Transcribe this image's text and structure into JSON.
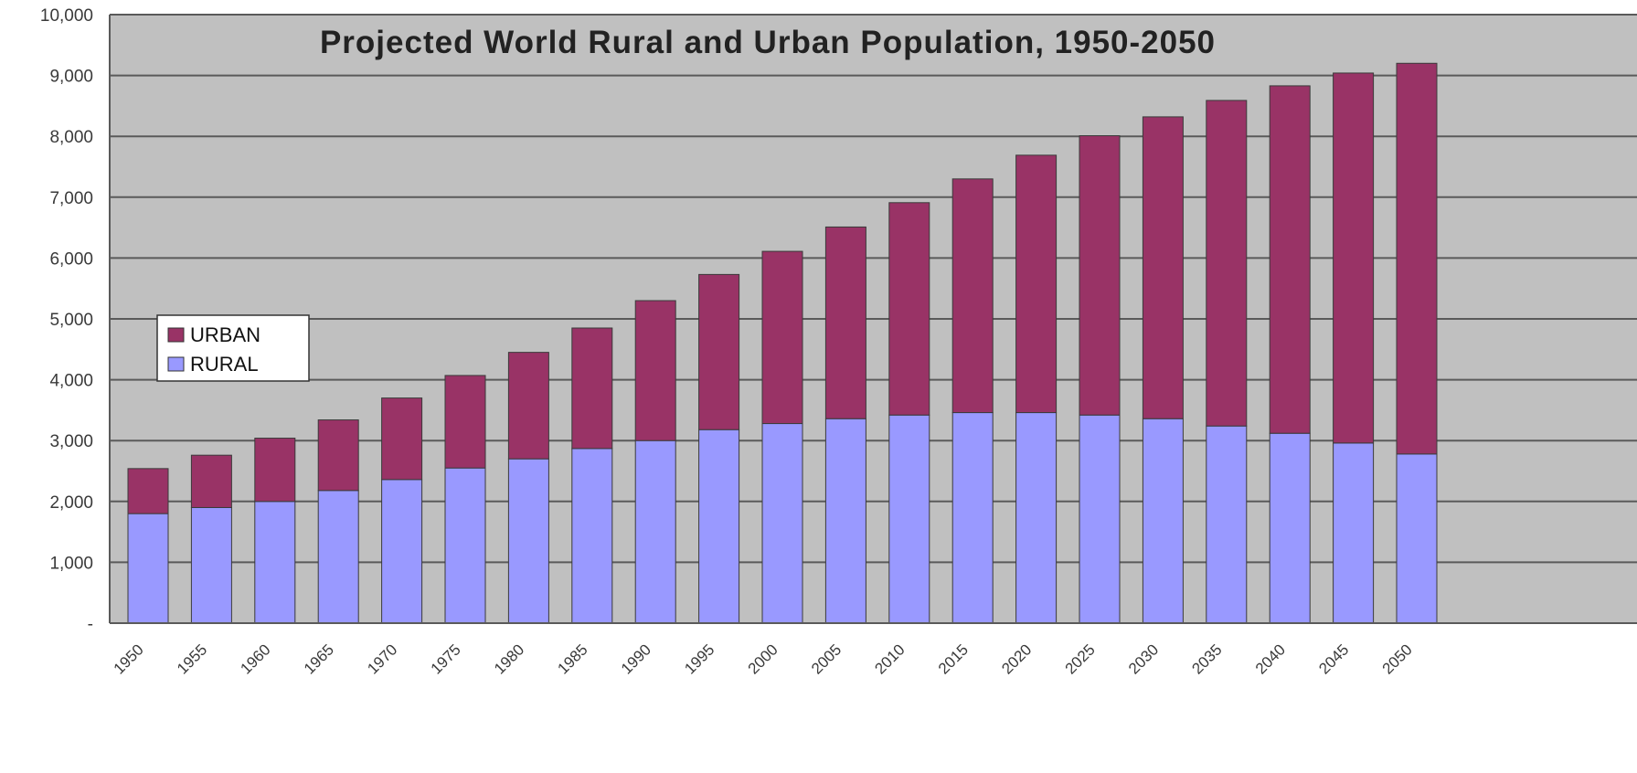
{
  "chart_data": {
    "type": "bar",
    "stacked": true,
    "title": "Projected World Rural and Urban Population, 1950-2050",
    "xlabel": "",
    "ylabel": "",
    "ylim": [
      0,
      10000
    ],
    "y_ticks": [
      "-",
      "1,000",
      "2,000",
      "3,000",
      "4,000",
      "5,000",
      "6,000",
      "7,000",
      "8,000",
      "9,000",
      "10,000"
    ],
    "grid": true,
    "legend_position": "left-middle",
    "categories": [
      "1950",
      "1955",
      "1960",
      "1965",
      "1970",
      "1975",
      "1980",
      "1985",
      "1990",
      "1995",
      "2000",
      "2005",
      "2010",
      "2015",
      "2020",
      "2025",
      "2030",
      "2035",
      "2040",
      "2045",
      "2050"
    ],
    "series": [
      {
        "name": "RURAL",
        "color": "#9999ff",
        "values": [
          1800,
          1900,
          2000,
          2180,
          2360,
          2550,
          2700,
          2870,
          3000,
          3180,
          3280,
          3360,
          3420,
          3460,
          3460,
          3420,
          3360,
          3240,
          3120,
          2960,
          2780
        ]
      },
      {
        "name": "URBAN",
        "color": "#993366",
        "values": [
          740,
          860,
          1040,
          1160,
          1340,
          1520,
          1750,
          1980,
          2300,
          2550,
          2830,
          3150,
          3490,
          3840,
          4230,
          4590,
          4960,
          5350,
          5710,
          6080,
          6420
        ]
      }
    ]
  }
}
